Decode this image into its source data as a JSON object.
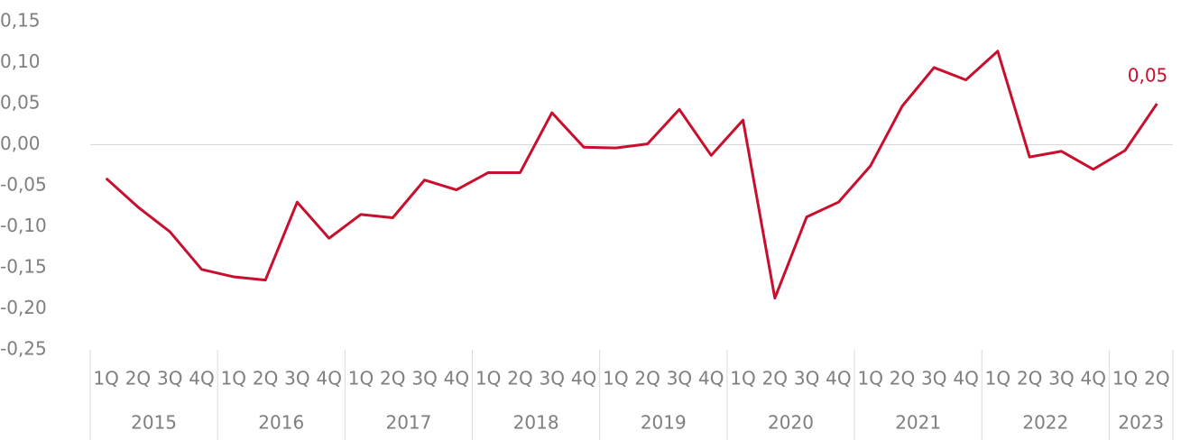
{
  "chart_data": {
    "type": "line",
    "categories": [
      "1Q",
      "2Q",
      "3Q",
      "4Q",
      "1Q",
      "2Q",
      "3Q",
      "4Q",
      "1Q",
      "2Q",
      "3Q",
      "4Q",
      "1Q",
      "2Q",
      "3Q",
      "4Q",
      "1Q",
      "2Q",
      "3Q",
      "4Q",
      "1Q",
      "2Q",
      "3Q",
      "4Q",
      "1Q",
      "2Q",
      "3Q",
      "4Q",
      "1Q",
      "2Q",
      "3Q",
      "4Q",
      "1Q",
      "2Q"
    ],
    "years": [
      "2015",
      "2016",
      "2017",
      "2018",
      "2019",
      "2020",
      "2021",
      "2022",
      "2023"
    ],
    "series": [
      {
        "color": "#c8102e",
        "values": [
          -0.041,
          -0.076,
          -0.106,
          -0.152,
          -0.161,
          -0.165,
          -0.07,
          -0.114,
          -0.085,
          -0.089,
          -0.043,
          -0.055,
          -0.034,
          -0.034,
          0.039,
          -0.003,
          -0.004,
          0.001,
          0.043,
          -0.013,
          0.03,
          -0.187,
          -0.088,
          -0.07,
          -0.026,
          0.047,
          0.094,
          0.079,
          0.114,
          -0.015,
          -0.008,
          -0.03,
          -0.007,
          0.05
        ],
        "value_labels": [
          null,
          null,
          null,
          null,
          null,
          null,
          null,
          null,
          null,
          null,
          null,
          null,
          null,
          null,
          null,
          null,
          null,
          null,
          null,
          null,
          null,
          null,
          null,
          null,
          null,
          null,
          null,
          null,
          null,
          null,
          null,
          null,
          null,
          "0,05"
        ]
      }
    ],
    "ylim": [
      -0.25,
      0.15
    ],
    "yticks": [
      {
        "value": 0.15,
        "label": "0,15"
      },
      {
        "value": 0.1,
        "label": "0,10"
      },
      {
        "value": 0.05,
        "label": "0,05"
      },
      {
        "value": 0,
        "label": "0,00"
      },
      {
        "value": -0.05,
        "label": "-0,05"
      },
      {
        "value": -0.1,
        "label": "-0,10"
      },
      {
        "value": -0.15,
        "label": "-0,15"
      },
      {
        "value": -0.2,
        "label": "-0,20"
      },
      {
        "value": -0.25,
        "label": "-0,25"
      }
    ]
  }
}
